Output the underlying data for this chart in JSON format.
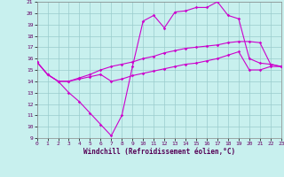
{
  "xlabel": "Windchill (Refroidissement éolien,°C)",
  "xlim": [
    0,
    23
  ],
  "ylim": [
    9,
    21
  ],
  "xticks": [
    0,
    1,
    2,
    3,
    4,
    5,
    6,
    7,
    8,
    9,
    10,
    11,
    12,
    13,
    14,
    15,
    16,
    17,
    18,
    19,
    20,
    21,
    22,
    23
  ],
  "yticks": [
    9,
    10,
    11,
    12,
    13,
    14,
    15,
    16,
    17,
    18,
    19,
    20,
    21
  ],
  "bg_color": "#c8f0ee",
  "grid_color": "#99cccc",
  "line_color": "#cc00cc",
  "line1_x": [
    0,
    1,
    2,
    3,
    4,
    5,
    6,
    7,
    8,
    9,
    10,
    11,
    12,
    13,
    14,
    15,
    16,
    17,
    18,
    19,
    20,
    21,
    22,
    23
  ],
  "line1_y": [
    15.7,
    14.6,
    14.0,
    14.0,
    14.3,
    14.6,
    15.0,
    15.3,
    15.5,
    15.7,
    16.0,
    16.2,
    16.5,
    16.7,
    16.9,
    17.0,
    17.1,
    17.2,
    17.4,
    17.5,
    17.5,
    17.4,
    15.5,
    15.3
  ],
  "line2_x": [
    0,
    1,
    2,
    3,
    4,
    5,
    6,
    7,
    8,
    9,
    10,
    11,
    12,
    13,
    14,
    15,
    16,
    17,
    18,
    19,
    20,
    21,
    22,
    23
  ],
  "line2_y": [
    15.7,
    14.6,
    14.0,
    13.0,
    12.2,
    11.2,
    10.2,
    9.2,
    11.0,
    15.3,
    19.3,
    19.8,
    18.7,
    20.1,
    20.2,
    20.5,
    20.5,
    21.0,
    19.8,
    19.5,
    16.0,
    15.6,
    15.5,
    15.3
  ],
  "line3_x": [
    0,
    1,
    2,
    3,
    4,
    5,
    6,
    7,
    8,
    9,
    10,
    11,
    12,
    13,
    14,
    15,
    16,
    17,
    18,
    19,
    20,
    21,
    22,
    23
  ],
  "line3_y": [
    15.7,
    14.6,
    14.0,
    14.0,
    14.2,
    14.4,
    14.6,
    14.0,
    14.2,
    14.5,
    14.7,
    14.9,
    15.1,
    15.3,
    15.5,
    15.6,
    15.8,
    16.0,
    16.3,
    16.6,
    15.0,
    15.0,
    15.3,
    15.3
  ]
}
